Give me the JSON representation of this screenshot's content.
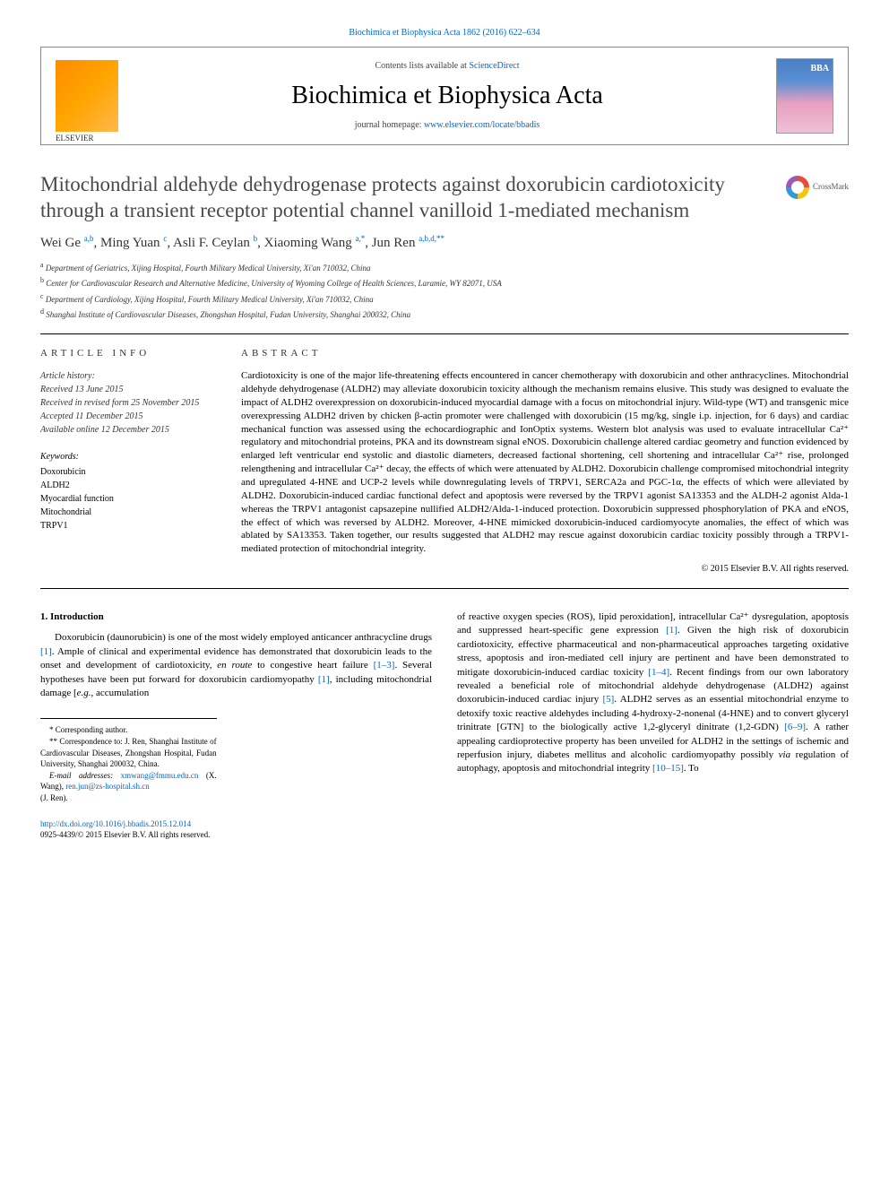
{
  "top_citation": "Biochimica et Biophysica Acta 1862 (2016) 622–634",
  "header": {
    "contents_prefix": "Contents lists available at ",
    "contents_link": "ScienceDirect",
    "journal_name": "Biochimica et Biophysica Acta",
    "homepage_prefix": "journal homepage: ",
    "homepage_url": "www.elsevier.com/locate/bbadis",
    "publisher_name": "ELSEVIER"
  },
  "crossmark_label": "CrossMark",
  "title": "Mitochondrial aldehyde dehydrogenase protects against doxorubicin cardiotoxicity through a transient receptor potential channel vanilloid 1-mediated mechanism",
  "authors_html": "Wei Ge <sup>a,b</sup>, Ming Yuan <sup>c</sup>, Asli F. Ceylan <sup>b</sup>, Xiaoming Wang <sup>a,*</sup>, Jun Ren <sup>a,b,d,**</sup>",
  "affiliations": [
    {
      "sup": "a",
      "text": "Department of Geriatrics, Xijing Hospital, Fourth Military Medical University, Xi'an 710032, China"
    },
    {
      "sup": "b",
      "text": "Center for Cardiovascular Research and Alternative Medicine, University of Wyoming College of Health Sciences, Laramie, WY 82071, USA"
    },
    {
      "sup": "c",
      "text": "Department of Cardiology, Xijing Hospital, Fourth Military Medical University, Xi'an 710032, China"
    },
    {
      "sup": "d",
      "text": "Shanghai Institute of Cardiovascular Diseases, Zhongshan Hospital, Fudan University, Shanghai 200032, China"
    }
  ],
  "article_info_head": "ARTICLE INFO",
  "abstract_head": "ABSTRACT",
  "history_label": "Article history:",
  "history": [
    "Received 13 June 2015",
    "Received in revised form 25 November 2015",
    "Accepted 11 December 2015",
    "Available online 12 December 2015"
  ],
  "keywords_label": "Keywords:",
  "keywords": [
    "Doxorubicin",
    "ALDH2",
    "Myocardial function",
    "Mitochondrial",
    "TRPV1"
  ],
  "abstract": "Cardiotoxicity is one of the major life-threatening effects encountered in cancer chemotherapy with doxorubicin and other anthracyclines. Mitochondrial aldehyde dehydrogenase (ALDH2) may alleviate doxorubicin toxicity although the mechanism remains elusive. This study was designed to evaluate the impact of ALDH2 overexpression on doxorubicin-induced myocardial damage with a focus on mitochondrial injury. Wild-type (WT) and transgenic mice overexpressing ALDH2 driven by chicken β-actin promoter were challenged with doxorubicin (15 mg/kg, single i.p. injection, for 6 days) and cardiac mechanical function was assessed using the echocardiographic and IonOptix systems. Western blot analysis was used to evaluate intracellular Ca²⁺ regulatory and mitochondrial proteins, PKA and its downstream signal eNOS. Doxorubicin challenge altered cardiac geometry and function evidenced by enlarged left ventricular end systolic and diastolic diameters, decreased factional shortening, cell shortening and intracellular Ca²⁺ rise, prolonged relengthening and intracellular Ca²⁺ decay, the effects of which were attenuated by ALDH2. Doxorubicin challenge compromised mitochondrial integrity and upregulated 4-HNE and UCP-2 levels while downregulating levels of TRPV1, SERCA2a and PGC-1α, the effects of which were alleviated by ALDH2. Doxorubicin-induced cardiac functional defect and apoptosis were reversed by the TRPV1 agonist SA13353 and the ALDH-2 agonist Alda-1 whereas the TRPV1 antagonist capsazepine nullified ALDH2/Alda-1-induced protection. Doxorubicin suppressed phosphorylation of PKA and eNOS, the effect of which was reversed by ALDH2. Moreover, 4-HNE mimicked doxorubicin-induced cardiomyocyte anomalies, the effect of which was ablated by SA13353. Taken together, our results suggested that ALDH2 may rescue against doxorubicin cardiac toxicity possibly through a TRPV1-mediated protection of mitochondrial integrity.",
  "copyright": "© 2015 Elsevier B.V. All rights reserved.",
  "intro_heading": "1. Introduction",
  "intro_col1": "Doxorubicin (daunorubicin) is one of the most widely employed anticancer anthracycline drugs [1]. Ample of clinical and experimental evidence has demonstrated that doxorubicin leads to the onset and development of cardiotoxicity, en route to congestive heart failure [1–3]. Several hypotheses have been put forward for doxorubicin cardiomyopathy [1], including mitochondrial damage [e.g., accumulation",
  "intro_col2": "of reactive oxygen species (ROS), lipid peroxidation], intracellular Ca²⁺ dysregulation, apoptosis and suppressed heart-specific gene expression [1]. Given the high risk of doxorubicin cardiotoxicity, effective pharmaceutical and non-pharmaceutical approaches targeting oxidative stress, apoptosis and iron-mediated cell injury are pertinent and have been demonstrated to mitigate doxorubicin-induced cardiac toxicity [1–4]. Recent findings from our own laboratory revealed a beneficial role of mitochondrial aldehyde dehydrogenase (ALDH2) against doxorubicin-induced cardiac injury [5]. ALDH2 serves as an essential mitochondrial enzyme to detoxify toxic reactive aldehydes including 4-hydroxy-2-nonenal (4-HNE) and to convert glyceryl trinitrate [GTN] to the biologically active 1,2-glyceryl dinitrate (1,2-GDN) [6–9]. A rather appealing cardioprotective property has been unveiled for ALDH2 in the settings of ischemic and reperfusion injury, diabetes mellitus and alcoholic cardiomyopathy possibly via regulation of autophagy, apoptosis and mitochondrial integrity [10–15]. To",
  "footnotes": {
    "line1": "* Corresponding author.",
    "line2": "** Correspondence to: J. Ren, Shanghai Institute of Cardiovascular Diseases, Zhongshan Hospital, Fudan University, Shanghai 200032, China.",
    "email_label": "E-mail addresses: ",
    "email1": "xmwang@fmmu.edu.cn",
    "email1_name": " (X. Wang), ",
    "email2": "ren.jun@zs-hospital.sh.cn",
    "email2_name": " (J. Ren)."
  },
  "footer": {
    "doi": "http://dx.doi.org/10.1016/j.bbadis.2015.12.014",
    "issn_line": "0925-4439/© 2015 Elsevier B.V. All rights reserved."
  },
  "colors": {
    "link": "#0066cc",
    "title_gray": "#4a4a4a",
    "border": "#888888"
  }
}
